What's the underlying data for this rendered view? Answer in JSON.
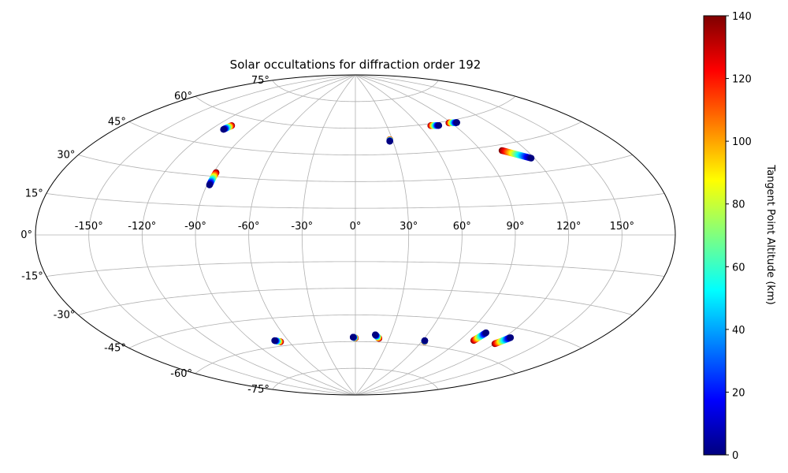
{
  "chart_data": {
    "type": "scatter",
    "projection": "aitoff",
    "title": "Solar occultations for diffraction order 192",
    "xlabel": "",
    "ylabel": "",
    "grid": true,
    "xlim": [
      -180,
      180
    ],
    "ylim": [
      -90,
      90
    ],
    "longitude_ticks": [
      -150,
      -120,
      -90,
      -60,
      -30,
      0,
      30,
      60,
      90,
      120,
      150
    ],
    "longitude_tick_labels": [
      "-150°",
      "-120°",
      "-90°",
      "-60°",
      "-30°",
      "0°",
      "30°",
      "60°",
      "90°",
      "120°",
      "150°"
    ],
    "latitude_ticks": [
      -75,
      -60,
      -45,
      -30,
      -15,
      0,
      15,
      30,
      45,
      60,
      75
    ],
    "latitude_tick_labels": [
      "-75°",
      "-60°",
      "-45°",
      "-30°",
      "-15°",
      "0°",
      "15°",
      "30°",
      "45°",
      "60°",
      "75°"
    ],
    "color_variable": "Tangent Point Altitude (km)",
    "colormap": "jet",
    "colorbar": {
      "label": "Tangent Point Altitude (km)",
      "range": [
        0,
        140
      ],
      "ticks": [
        0,
        20,
        40,
        60,
        80,
        100,
        120,
        140
      ],
      "tick_labels": [
        "0",
        "20",
        "40",
        "60",
        "80",
        "100",
        "120",
        "140"
      ]
    },
    "series": [
      {
        "start": {
          "lon": -109,
          "lat": 55.2,
          "alt": 140
        },
        "end": {
          "lon": -111,
          "lat": 52.8,
          "alt": 0
        }
      },
      {
        "start": {
          "lon": -88.5,
          "lat": 32.0,
          "alt": 140
        },
        "end": {
          "lon": -88.5,
          "lat": 25.5,
          "alt": 0
        }
      },
      {
        "start": {
          "lon": 28,
          "lat": 53.2,
          "alt": 140
        },
        "end": {
          "lon": 27.5,
          "lat": 52.3,
          "alt": 0
        }
      },
      {
        "start": {
          "lon": 70,
          "lat": 59.0,
          "alt": 140
        },
        "end": {
          "lon": 77,
          "lat": 58.5,
          "alt": 0
        }
      },
      {
        "start": {
          "lon": 88,
          "lat": 59.0,
          "alt": 140
        },
        "end": {
          "lon": 95,
          "lat": 58.5,
          "alt": 0
        }
      },
      {
        "start": {
          "lon": 104,
          "lat": 42.2,
          "alt": 140
        },
        "end": {
          "lon": 118,
          "lat": 36.8,
          "alt": 0
        }
      },
      {
        "start": {
          "lon": -67.5,
          "lat": -57.8,
          "alt": 140
        },
        "end": {
          "lon": -71.5,
          "lat": -56.8,
          "alt": 0
        }
      },
      {
        "start": {
          "lon": 0,
          "lat": -58.0,
          "alt": 140
        },
        "end": {
          "lon": -2,
          "lat": -57.5,
          "alt": 0
        }
      },
      {
        "start": {
          "lon": 21,
          "lat": -58.0,
          "alt": 140
        },
        "end": {
          "lon": 17,
          "lat": -56.0,
          "alt": 0
        }
      },
      {
        "start": {
          "lon": 62.5,
          "lat": -58.0,
          "alt": 140
        },
        "end": {
          "lon": 62,
          "lat": -57.5,
          "alt": 0
        }
      },
      {
        "start": {
          "lon": 101,
          "lat": -54.0,
          "alt": 140
        },
        "end": {
          "lon": 103,
          "lat": -49.5,
          "alt": 0
        }
      },
      {
        "start": {
          "lon": 120,
          "lat": -53.5,
          "alt": 140
        },
        "end": {
          "lon": 124.5,
          "lat": -49.5,
          "alt": 0
        }
      }
    ]
  }
}
